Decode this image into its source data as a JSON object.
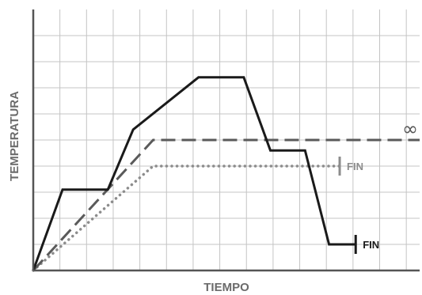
{
  "chart_data": {
    "type": "line",
    "title": "",
    "xlabel": "TIEMPO",
    "ylabel": "TEMPERATURA",
    "xlim": [
      0,
      14.5
    ],
    "ylim": [
      0,
      10
    ],
    "grid": true,
    "series": [
      {
        "style": "solid",
        "color": "#1a1a1a",
        "points": [
          [
            0,
            0
          ],
          [
            1.1,
            3.1
          ],
          [
            2.8,
            3.1
          ],
          [
            3.75,
            5.4
          ],
          [
            6.2,
            7.4
          ],
          [
            7.9,
            7.4
          ],
          [
            8.9,
            4.6
          ],
          [
            10.2,
            4.6
          ],
          [
            11.1,
            1.0
          ],
          [
            12.1,
            1.0
          ]
        ],
        "end_label": "FIN"
      },
      {
        "style": "dashed",
        "color": "#5a5a5a",
        "points": [
          [
            0,
            0
          ],
          [
            4.5,
            5.0
          ],
          [
            14.5,
            5.0
          ]
        ],
        "end_label": "∞"
      },
      {
        "style": "dotted",
        "color": "#8c8c8c",
        "points": [
          [
            0,
            0
          ],
          [
            4.5,
            4.0
          ],
          [
            11.5,
            4.0
          ]
        ],
        "end_label": "FIN"
      }
    ]
  }
}
